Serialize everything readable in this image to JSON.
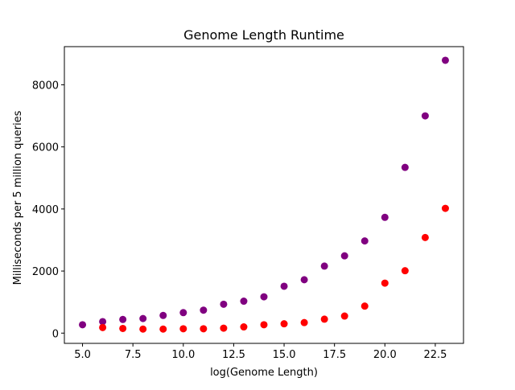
{
  "chart_data": {
    "type": "scatter",
    "title": "Genome Length Runtime",
    "xlabel": "log(Genome Length)",
    "ylabel": "Milliseconds per 5 million queries",
    "xlim": [
      4.1,
      23.9
    ],
    "ylim": [
      -330,
      9230
    ],
    "xticks": [
      5.0,
      7.5,
      10.0,
      12.5,
      15.0,
      17.5,
      20.0,
      22.5
    ],
    "xtick_labels": [
      "5.0",
      "7.5",
      "10.0",
      "12.5",
      "15.0",
      "17.5",
      "20.0",
      "22.5"
    ],
    "yticks": [
      0,
      2000,
      4000,
      6000,
      8000
    ],
    "ytick_labels": [
      "0",
      "2000",
      "4000",
      "6000",
      "8000"
    ],
    "grid": false,
    "legend": null,
    "series": [
      {
        "color": "#800080",
        "x": [
          5,
          6,
          7,
          8,
          9,
          10,
          11,
          12,
          13,
          14,
          15,
          16,
          17,
          18,
          19,
          20,
          21,
          22,
          23
        ],
        "y": [
          270,
          370,
          440,
          470,
          570,
          660,
          740,
          930,
          1030,
          1170,
          1510,
          1720,
          2160,
          2490,
          2970,
          3730,
          5340,
          7000,
          8790
        ]
      },
      {
        "color": "#ff0000",
        "x": [
          6,
          7,
          8,
          9,
          10,
          11,
          12,
          13,
          14,
          15,
          16,
          17,
          18,
          19,
          20,
          21,
          22,
          23
        ],
        "y": [
          180,
          150,
          130,
          130,
          140,
          140,
          160,
          200,
          270,
          300,
          340,
          450,
          550,
          870,
          1610,
          2010,
          3080,
          4020
        ]
      }
    ]
  }
}
